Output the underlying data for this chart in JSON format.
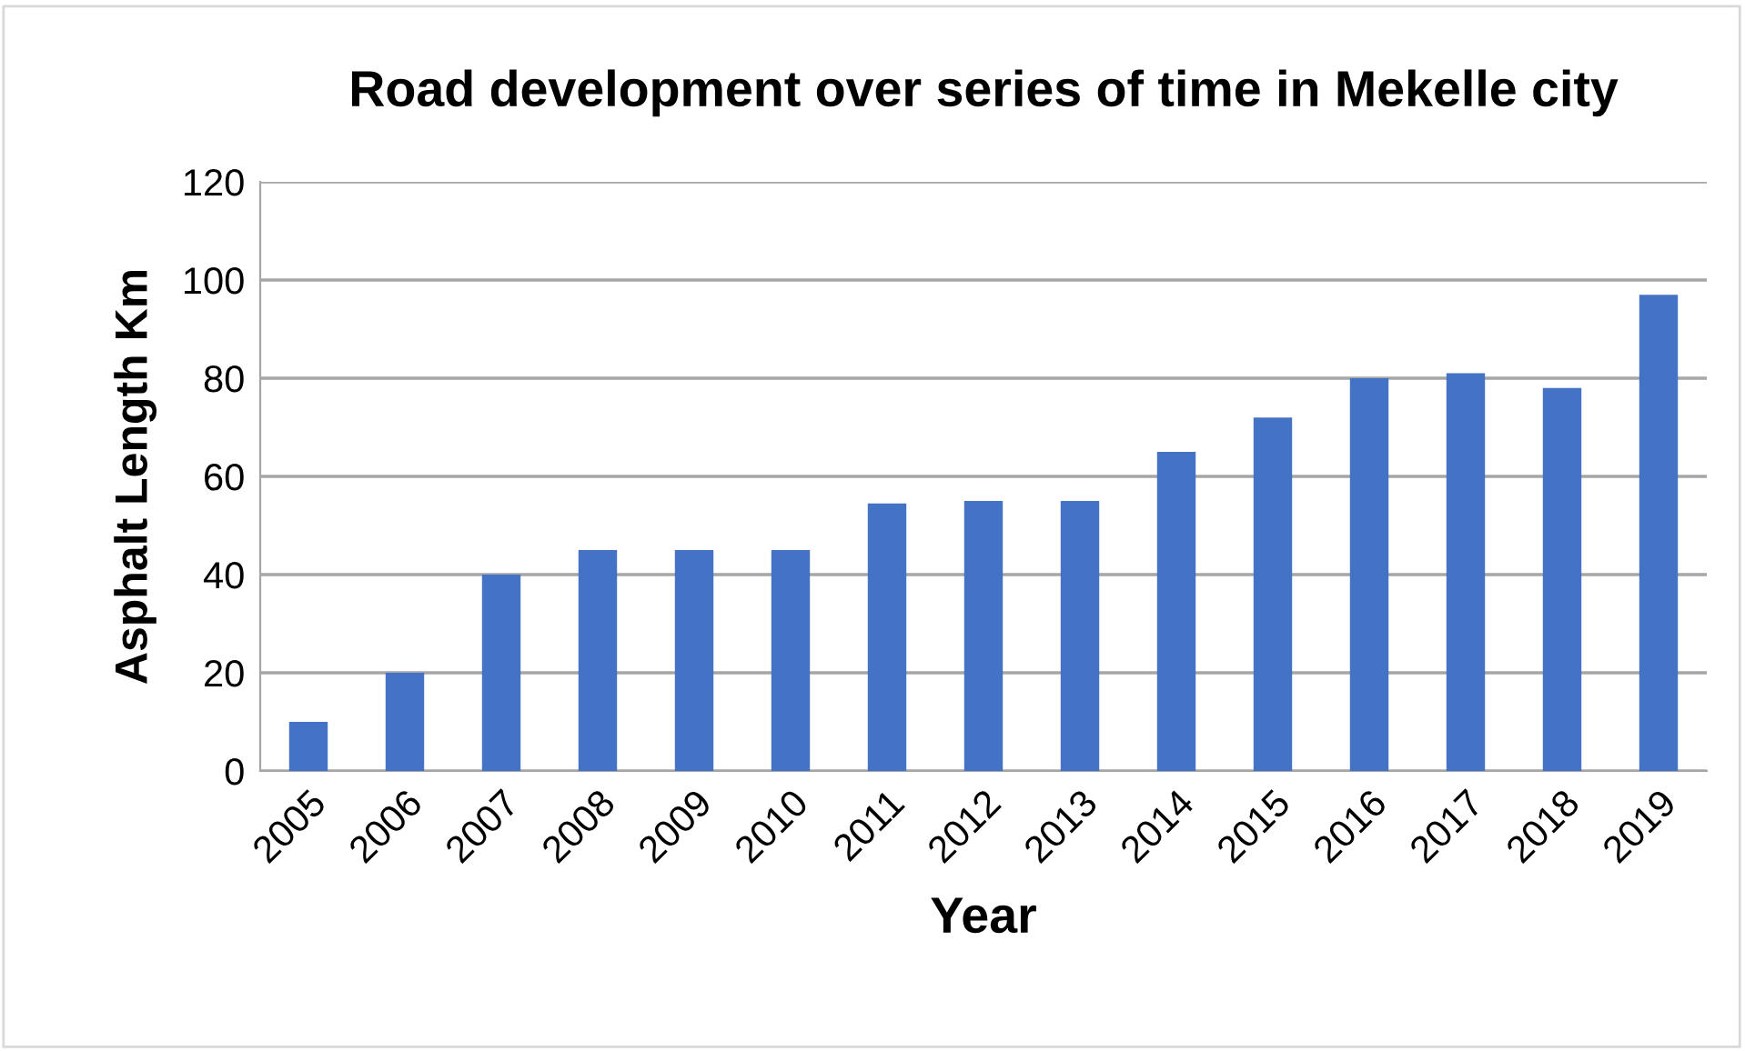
{
  "chart_data": {
    "type": "bar",
    "title": "Road development over series of time in Mekelle city",
    "xlabel": "Year",
    "ylabel": "Asphalt Length Km",
    "categories": [
      "2005",
      "2006",
      "2007",
      "2008",
      "2009",
      "2010",
      "2011",
      "2012",
      "2013",
      "2014",
      "2015",
      "2016",
      "2017",
      "2018",
      "2019"
    ],
    "values": [
      10,
      20,
      40,
      45,
      45,
      45,
      54.5,
      55,
      55,
      65,
      72,
      80,
      81,
      78,
      97
    ],
    "color": "#4472c4",
    "ylim": [
      0,
      120
    ],
    "yticks": [
      0,
      20,
      40,
      60,
      80,
      100,
      120
    ],
    "grid": "y"
  }
}
